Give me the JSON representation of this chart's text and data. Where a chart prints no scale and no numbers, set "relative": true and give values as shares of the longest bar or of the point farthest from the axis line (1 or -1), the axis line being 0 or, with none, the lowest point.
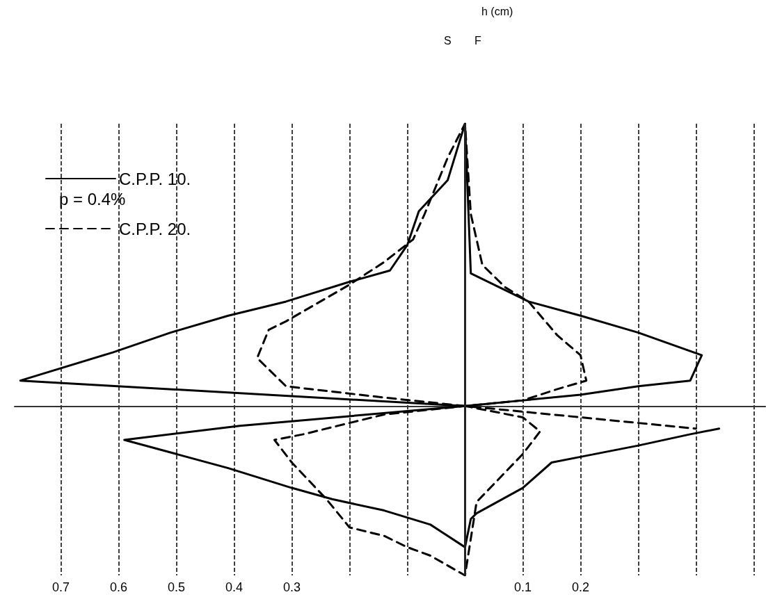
{
  "chart_data": {
    "type": "line",
    "relative": true,
    "annotations": [
      "h (cm)",
      "S",
      "F",
      "p = 0.4%"
    ],
    "xlim": [
      -0.78,
      0.52
    ],
    "xticks": [
      {
        "value": -0.7,
        "label": "0.7"
      },
      {
        "value": -0.6,
        "label": "0.6"
      },
      {
        "value": -0.5,
        "label": "0.5"
      },
      {
        "value": -0.4,
        "label": "0.4"
      },
      {
        "value": -0.3,
        "label": "0.3"
      },
      {
        "value": -0.2,
        "label": null
      },
      {
        "value": -0.1,
        "label": null
      },
      {
        "value": 0,
        "label": null
      },
      {
        "value": 0.1,
        "label": "0.1"
      },
      {
        "value": 0.2,
        "label": "0.2"
      },
      {
        "value": 0.3,
        "label": null
      },
      {
        "value": 0.4,
        "label": null
      },
      {
        "value": 0.5,
        "label": null
      }
    ],
    "grid": "x",
    "legend": "top left",
    "marker": "none",
    "ref_lines": [
      {
        "axis": "x",
        "value": 0,
        "label": null,
        "color": "#222222",
        "line_style": "solid"
      }
    ],
    "series": [
      {
        "name": "C.P.P. 10.",
        "color": "#000000",
        "line_style": "solid",
        "x": [
          0,
          -0.77,
          -0.61,
          -0.51,
          -0.41,
          -0.31,
          -0.2,
          -0.13,
          -0.1,
          -0.08,
          -0.03,
          0,
          0.01,
          0.11,
          0.2,
          0.3,
          0.41,
          0.39,
          0.3,
          0.2,
          0.1,
          0,
          -0.39,
          -0.59,
          -0.5,
          -0.41,
          -0.3,
          -0.23,
          -0.14,
          -0.06,
          0,
          0.01,
          0.02,
          0.1,
          0.15,
          0.2,
          0.3,
          0.39,
          0.44
        ],
        "values": [
          0,
          0.09,
          0.19,
          0.26,
          0.32,
          0.37,
          0.44,
          0.48,
          0.57,
          0.69,
          0.8,
          1,
          0.47,
          0.37,
          0.32,
          0.26,
          0.18,
          0.09,
          0.07,
          0.04,
          0.02,
          0,
          -0.07,
          -0.12,
          -0.17,
          -0.22,
          -0.29,
          -0.33,
          -0.37,
          -0.42,
          -0.5,
          -0.4,
          -0.38,
          -0.29,
          -0.2,
          -0.18,
          -0.14,
          -0.1,
          -0.08
        ]
      },
      {
        "name": "C.P.P. 20.",
        "color": "#000000",
        "line_style": "dashed",
        "x": [
          0,
          -0.14,
          -0.31,
          -0.36,
          -0.34,
          -0.31,
          -0.2,
          -0.14,
          -0.09,
          -0.07,
          -0.03,
          0,
          0.01,
          0.03,
          0.07,
          0.11,
          0.16,
          0.2,
          0.21,
          0.16,
          0.1,
          0,
          -0.14,
          -0.28,
          -0.33,
          -0.3,
          -0.24,
          -0.2,
          -0.14,
          -0.1,
          -0.06,
          0,
          0.02,
          0.1,
          0.13,
          0.1,
          0,
          0.4
        ],
        "values": [
          0,
          0.03,
          0.07,
          0.17,
          0.27,
          0.3,
          0.43,
          0.51,
          0.59,
          0.68,
          0.88,
          1,
          0.68,
          0.5,
          0.42,
          0.37,
          0.25,
          0.18,
          0.09,
          0.06,
          0.02,
          0,
          -0.03,
          -0.1,
          -0.12,
          -0.2,
          -0.33,
          -0.43,
          -0.46,
          -0.5,
          -0.53,
          -0.6,
          -0.34,
          -0.17,
          -0.09,
          -0.04,
          0,
          -0.08
        ]
      }
    ]
  }
}
